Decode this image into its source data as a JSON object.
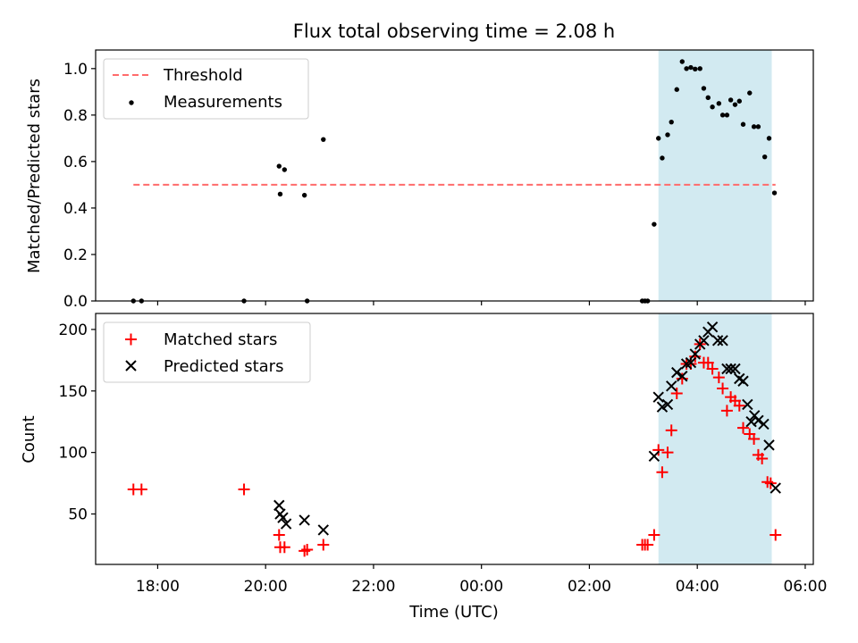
{
  "figure": {
    "title": "Flux total observing time = 2.08 h"
  },
  "chart_data": [
    {
      "type": "scatter",
      "panel": "top",
      "ylabel": "Matched/Predicted stars",
      "xlabel": "",
      "x_unit": "hours since 00:00 UTC",
      "ylim": [
        0,
        1.08
      ],
      "yticks": [
        0.0,
        0.2,
        0.4,
        0.6,
        0.8,
        1.0
      ],
      "ytick_labels": [
        "0.0",
        "0.2",
        "0.4",
        "0.6",
        "0.8",
        "1.0"
      ],
      "legend": {
        "placement": "upper-left",
        "entries": [
          "Threshold",
          "Measurements"
        ]
      },
      "shaded_span": {
        "x": [
          3.28,
          5.38
        ],
        "color": "#add8e6"
      },
      "threshold": {
        "name": "Threshold",
        "y": 0.5,
        "x": [
          -6.45,
          5.45
        ],
        "color": "#ff6b6b",
        "style": "dashed"
      },
      "series": [
        {
          "name": "Measurements",
          "color": "#000000",
          "points": [
            [
              -6.45,
              0.0
            ],
            [
              -6.3,
              0.0
            ],
            [
              -4.4,
              0.0
            ],
            [
              -3.75,
              0.58
            ],
            [
              -3.73,
              0.46
            ],
            [
              -3.65,
              0.565
            ],
            [
              -3.28,
              0.455
            ],
            [
              -3.23,
              0.0
            ],
            [
              -2.93,
              0.695
            ],
            [
              2.98,
              0.0
            ],
            [
              3.03,
              0.0
            ],
            [
              3.08,
              0.0
            ],
            [
              3.2,
              0.33
            ],
            [
              3.28,
              0.7
            ],
            [
              3.35,
              0.615
            ],
            [
              3.45,
              0.715
            ],
            [
              3.52,
              0.77
            ],
            [
              3.62,
              0.91
            ],
            [
              3.72,
              1.03
            ],
            [
              3.8,
              1.0
            ],
            [
              3.88,
              1.005
            ],
            [
              3.96,
              0.998
            ],
            [
              4.05,
              1.0
            ],
            [
              4.12,
              0.915
            ],
            [
              4.2,
              0.875
            ],
            [
              4.28,
              0.835
            ],
            [
              4.4,
              0.85
            ],
            [
              4.47,
              0.8
            ],
            [
              4.55,
              0.8
            ],
            [
              4.62,
              0.865
            ],
            [
              4.7,
              0.845
            ],
            [
              4.78,
              0.86
            ],
            [
              4.85,
              0.76
            ],
            [
              4.97,
              0.895
            ],
            [
              5.05,
              0.75
            ],
            [
              5.13,
              0.75
            ],
            [
              5.25,
              0.62
            ],
            [
              5.33,
              0.7
            ],
            [
              5.43,
              0.465
            ]
          ]
        }
      ]
    },
    {
      "type": "scatter",
      "panel": "bottom",
      "ylabel": "Count",
      "xlabel": "Time (UTC)",
      "x_unit": "hours since 00:00 UTC",
      "xlim": [
        -7.15,
        6.15
      ],
      "xticks": [
        -6,
        -4,
        -2,
        0,
        2,
        4,
        6
      ],
      "xtick_labels": [
        "18:00",
        "20:00",
        "22:00",
        "00:00",
        "02:00",
        "04:00",
        "06:00"
      ],
      "ylim": [
        9,
        213
      ],
      "yticks": [
        50,
        100,
        150,
        200
      ],
      "ytick_labels": [
        "50",
        "100",
        "150",
        "200"
      ],
      "legend": {
        "placement": "upper-left",
        "entries": [
          "Matched stars",
          "Predicted stars"
        ]
      },
      "shaded_span": {
        "x": [
          3.28,
          5.38
        ],
        "color": "#add8e6"
      },
      "series": [
        {
          "name": "Matched stars",
          "marker": "plus",
          "color": "#ff0000",
          "points": [
            [
              -6.45,
              70
            ],
            [
              -6.3,
              70
            ],
            [
              -4.4,
              70
            ],
            [
              -3.75,
              33
            ],
            [
              -3.73,
              23
            ],
            [
              -3.65,
              23
            ],
            [
              -3.28,
              20
            ],
            [
              -3.23,
              21
            ],
            [
              -2.93,
              25
            ],
            [
              2.98,
              25
            ],
            [
              3.03,
              25
            ],
            [
              3.08,
              25
            ],
            [
              3.2,
              33
            ],
            [
              3.28,
              102
            ],
            [
              3.35,
              84
            ],
            [
              3.45,
              100
            ],
            [
              3.52,
              118
            ],
            [
              3.62,
              148
            ],
            [
              3.72,
              160
            ],
            [
              3.8,
              172
            ],
            [
              3.88,
              172
            ],
            [
              3.96,
              178
            ],
            [
              4.05,
              188
            ],
            [
              4.12,
              173
            ],
            [
              4.2,
              173
            ],
            [
              4.28,
              168
            ],
            [
              4.4,
              161
            ],
            [
              4.47,
              152
            ],
            [
              4.55,
              134
            ],
            [
              4.62,
              145
            ],
            [
              4.7,
              142
            ],
            [
              4.78,
              138
            ],
            [
              4.85,
              120
            ],
            [
              4.97,
              115
            ],
            [
              5.05,
              111
            ],
            [
              5.13,
              98
            ],
            [
              5.2,
              95
            ],
            [
              5.3,
              76
            ],
            [
              5.36,
              75
            ],
            [
              5.45,
              33
            ]
          ]
        },
        {
          "name": "Predicted stars",
          "marker": "x",
          "color": "#000000",
          "points": [
            [
              -3.75,
              57
            ],
            [
              -3.73,
              50
            ],
            [
              -3.68,
              47
            ],
            [
              -3.62,
              42
            ],
            [
              -3.28,
              45
            ],
            [
              -2.93,
              37
            ],
            [
              3.2,
              97
            ],
            [
              3.28,
              145
            ],
            [
              3.35,
              137
            ],
            [
              3.45,
              139
            ],
            [
              3.52,
              154
            ],
            [
              3.62,
              165
            ],
            [
              3.72,
              162
            ],
            [
              3.8,
              172
            ],
            [
              3.88,
              173
            ],
            [
              3.96,
              180
            ],
            [
              4.05,
              188
            ],
            [
              4.12,
              191
            ],
            [
              4.2,
              198
            ],
            [
              4.28,
              202
            ],
            [
              4.38,
              191
            ],
            [
              4.47,
              191
            ],
            [
              4.55,
              168
            ],
            [
              4.62,
              168
            ],
            [
              4.7,
              168
            ],
            [
              4.78,
              160
            ],
            [
              4.85,
              158
            ],
            [
              4.93,
              139
            ],
            [
              5.0,
              125
            ],
            [
              5.06,
              130
            ],
            [
              5.13,
              126
            ],
            [
              5.23,
              123
            ],
            [
              5.33,
              106
            ],
            [
              5.45,
              71
            ]
          ]
        }
      ]
    }
  ]
}
